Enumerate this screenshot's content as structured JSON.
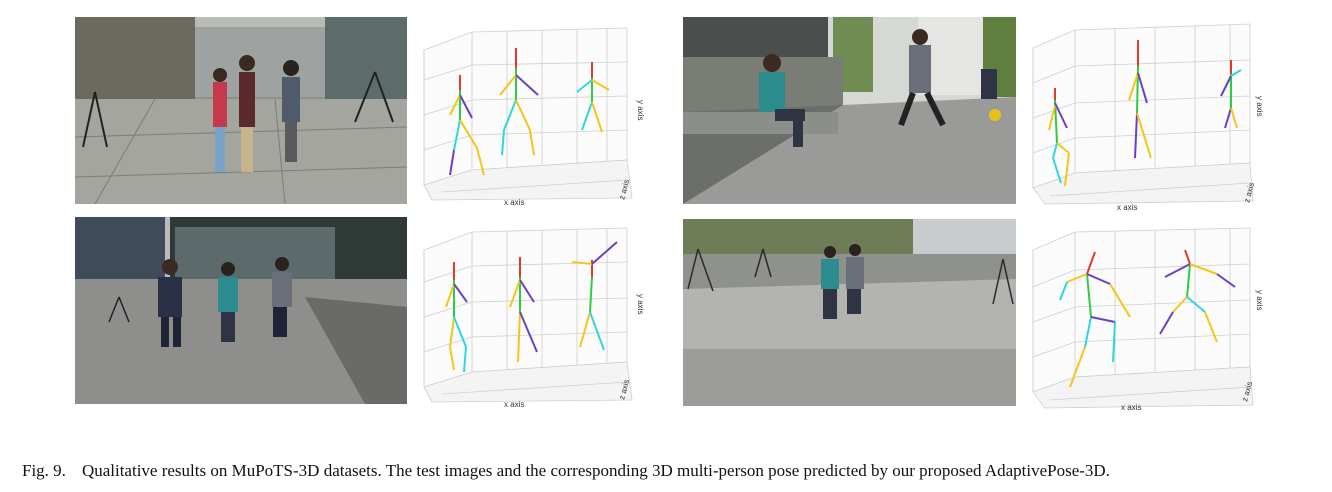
{
  "figure": {
    "caption_label": "Fig. 9.",
    "caption_text": "Qualitative results on MuPoTS-3D datasets. The test images and the corresponding 3D multi-person pose predicted by our proposed AdaptivePose-3D."
  },
  "plots": [
    {
      "x_label": "x axis",
      "y_label": "y axis",
      "z_label": "z axis"
    },
    {
      "x_label": "x axis",
      "y_label": "y axis",
      "z_label": "z axis"
    },
    {
      "x_label": "x axis",
      "y_label": "y axis",
      "z_label": "z axis"
    },
    {
      "x_label": "x axis",
      "y_label": "y axis",
      "z_label": "z axis"
    }
  ],
  "colors": {
    "photo_sky": "#c9ccc6",
    "photo_ground": "#8d8f8a",
    "skeleton_head": "#e23a2a",
    "skeleton_spine": "#2ecc40",
    "skeleton_left": "#f5c518",
    "skeleton_right": "#6c3fc9",
    "skeleton_leg": "#2fd6e0"
  }
}
